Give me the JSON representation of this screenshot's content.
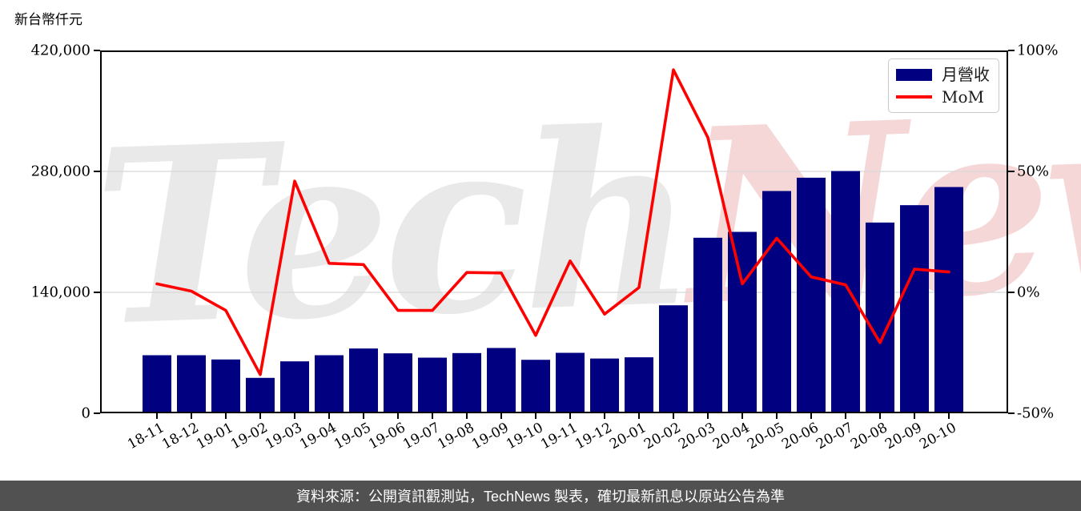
{
  "title": {
    "unit_label": "新台幣仟元"
  },
  "legend": {
    "bar_label": "月營收",
    "line_label": "MoM"
  },
  "watermark": {
    "part_gray": "Tech",
    "part_pink": "News"
  },
  "footer": {
    "text": "資料來源：公開資訊觀測站，TechNews 製表，確切最新訊息以原站公告為準"
  },
  "colors": {
    "bar": "#000080",
    "line": "#ff0000",
    "grid": "#d8d8d8",
    "axis": "#000000",
    "footer_bg": "#515151",
    "footer_text": "#ffffff",
    "watermark_gray": "#e9e9e9",
    "watermark_pink": "#f6d7d7",
    "legend_border": "#c9c9c9"
  },
  "chart_data": {
    "type": "bar",
    "title": "",
    "categories": [
      "18-11",
      "18-12",
      "19-01",
      "19-02",
      "19-03",
      "19-04",
      "19-05",
      "19-06",
      "19-07",
      "19-08",
      "19-09",
      "19-10",
      "19-11",
      "19-12",
      "20-01",
      "20-02",
      "20-03",
      "20-04",
      "20-05",
      "20-06",
      "20-07",
      "20-08",
      "20-09",
      "20-10"
    ],
    "series": [
      {
        "name": "月營收",
        "type": "bar",
        "yaxis": "left",
        "unit": "新台幣仟元",
        "values": [
          67200,
          67200,
          62300,
          41000,
          60100,
          67200,
          75000,
          69400,
          64400,
          69700,
          75600,
          61900,
          70000,
          63400,
          64800,
          125000,
          203200,
          210000,
          257300,
          272700,
          280400,
          220800,
          240900,
          261900
        ]
      },
      {
        "name": "MoM",
        "type": "line",
        "yaxis": "right",
        "unit": "%",
        "values": [
          3.5,
          0.5,
          -7.5,
          -34.0,
          46.0,
          12.0,
          11.5,
          -7.5,
          -7.5,
          8.2,
          8.0,
          -17.8,
          13.0,
          -9.0,
          2.0,
          92.0,
          64.0,
          3.5,
          22.4,
          6.4,
          3.1,
          -20.8,
          9.6,
          8.4
        ]
      }
    ],
    "left_axis": {
      "label": "新台幣仟元",
      "tick_labels": [
        "0",
        "140,000",
        "280,000",
        "420,000"
      ],
      "tick_values": [
        0,
        140000,
        280000,
        420000
      ],
      "range": [
        0,
        420000
      ]
    },
    "right_axis": {
      "tick_labels": [
        "-50%",
        "0%",
        "50%",
        "100%"
      ],
      "tick_values": [
        -50,
        0,
        50,
        100
      ],
      "range": [
        -50,
        100
      ]
    },
    "grid": "horizontal",
    "legend_position": "upper right"
  }
}
